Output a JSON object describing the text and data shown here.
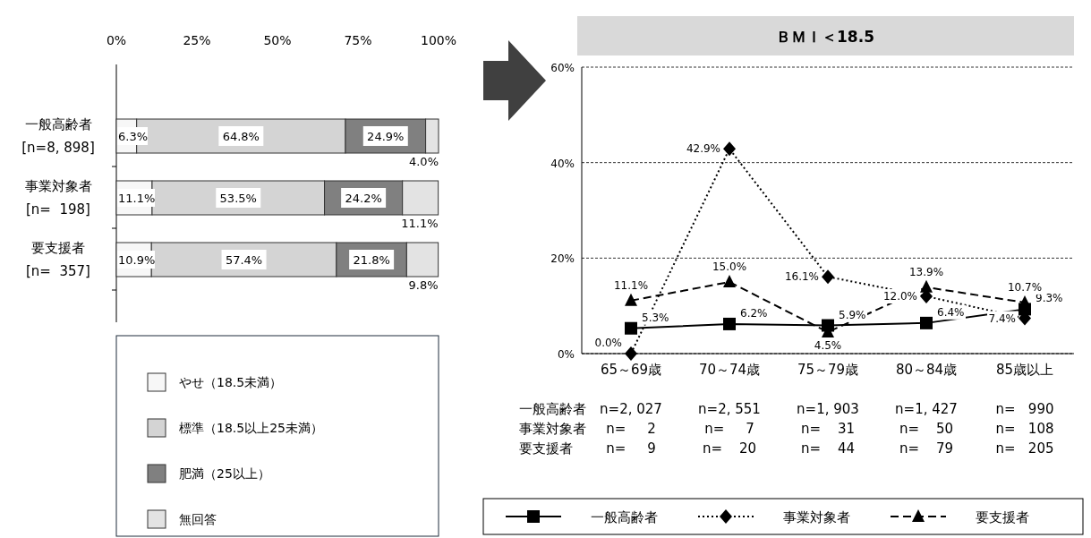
{
  "chart_data": [
    {
      "type": "bar",
      "orientation": "horizontal",
      "stacked": true,
      "categories": [
        "一般高齢者\n[n=8, 898]",
        "事業対象者\n[n=  198]",
        "要支援者\n[n=  357]"
      ],
      "series": [
        {
          "name": "やせ（18.5未満）",
          "color": "#f7f7f7",
          "values": [
            6.3,
            11.1,
            10.9
          ],
          "value_labels": [
            "6.3%",
            "11.1%",
            "10.9%"
          ]
        },
        {
          "name": "標準（18.5以上25未満）",
          "color": "#d4d4d4",
          "values": [
            64.8,
            53.5,
            57.4
          ],
          "value_labels": [
            "64.8%",
            "53.5%",
            "57.4%"
          ]
        },
        {
          "name": "肥満（25以上）",
          "color": "#808080",
          "values": [
            24.9,
            24.2,
            21.8
          ],
          "value_labels": [
            "24.9%",
            "24.2%",
            "21.8%"
          ]
        },
        {
          "name": "無回答",
          "color": "#e3e3e3",
          "values": [
            4.0,
            11.1,
            9.8
          ],
          "value_labels": [
            "4.0%",
            "11.1%",
            "9.8%"
          ]
        }
      ],
      "xlim": [
        0,
        100
      ],
      "xticks": [
        {
          "value": 0,
          "label": "0%"
        },
        {
          "value": 25,
          "label": "25%"
        },
        {
          "value": 50,
          "label": "50%"
        },
        {
          "value": 75,
          "label": "75%"
        },
        {
          "value": 100,
          "label": "100%"
        }
      ],
      "legend": "bottom"
    },
    {
      "type": "line",
      "title": "ＢＭＩ＜18.5",
      "categories": [
        "65～69歳",
        "70～74歳",
        "75～79歳",
        "80～84歳",
        "85歳以上"
      ],
      "series": [
        {
          "name": "一般高齢者",
          "color": "#000000",
          "marker": "square",
          "line_style": "solid",
          "values": [
            5.3,
            6.2,
            5.9,
            6.4,
            9.3
          ],
          "value_labels": [
            "5.3%",
            "6.2%",
            "5.9%",
            "6.4%",
            "9.3%"
          ]
        },
        {
          "name": "事業対象者",
          "color": "#000000",
          "marker": "diamond",
          "line_style": "dotted",
          "values": [
            0.0,
            42.9,
            16.1,
            12.0,
            7.4
          ],
          "value_labels": [
            "0.0%",
            "42.9%",
            "16.1%",
            "12.0%",
            "7.4%"
          ]
        },
        {
          "name": "要支援者",
          "color": "#000000",
          "marker": "triangle",
          "line_style": "dashed",
          "values": [
            11.1,
            15.0,
            4.5,
            13.9,
            10.7
          ],
          "value_labels": [
            "11.1%",
            "15.0%",
            "4.5%",
            "13.9%",
            "10.7%"
          ]
        }
      ],
      "ylim": [
        0,
        60
      ],
      "yticks": [
        {
          "value": 0,
          "label": "0%"
        },
        {
          "value": 20,
          "label": "20%"
        },
        {
          "value": 40,
          "label": "40%"
        },
        {
          "value": 60,
          "label": "60%"
        }
      ],
      "grid": "y",
      "legend": "bottom",
      "annotations": [
        "一般高齢者",
        "n=2, 027",
        "n=2, 551",
        "n=1, 903",
        "n=1, 427",
        "n=   990",
        "事業対象者",
        "n=     2",
        "n=     7",
        "n=    31",
        "n=    50",
        "n=   108",
        "要支援者",
        "n=     9",
        "n=    20",
        "n=    44",
        "n=    79",
        "n=   205"
      ]
    }
  ]
}
